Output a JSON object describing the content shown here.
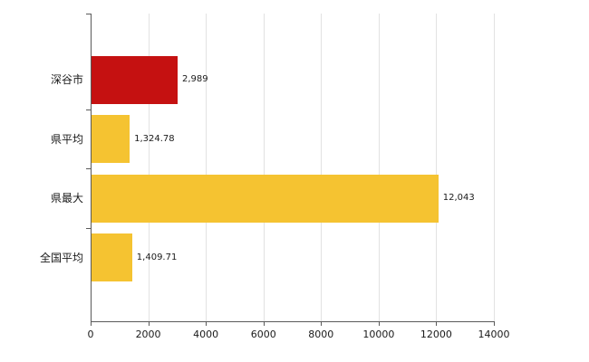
{
  "chart_data": {
    "type": "bar",
    "orientation": "horizontal",
    "title": "",
    "xlabel": "",
    "ylabel": "",
    "categories": [
      "深谷市",
      "県平均",
      "県最大",
      "全国平均"
    ],
    "values": [
      2989,
      1324.78,
      12043,
      1409.71
    ],
    "value_labels": [
      "2,989",
      "1,324.78",
      "12,043",
      "1,409.71"
    ],
    "bar_colors": [
      "#c51111",
      "#f5c331",
      "#f5c331",
      "#f5c331"
    ],
    "xlim": [
      0,
      14000
    ],
    "x_ticks": [
      0,
      2000,
      4000,
      6000,
      8000,
      10000,
      12000,
      14000
    ],
    "x_tick_labels": [
      "0",
      "2000",
      "4000",
      "6000",
      "8000",
      "10000",
      "12000",
      "14000"
    ],
    "grid": true,
    "legend_position": "none",
    "colors": {
      "highlight_bar": "#c51111",
      "normal_bar": "#f5c331",
      "gridline": "#e2e2e2",
      "axis": "#5a5a5a",
      "text": "#1a1a1a",
      "background": "#ffffff"
    }
  }
}
